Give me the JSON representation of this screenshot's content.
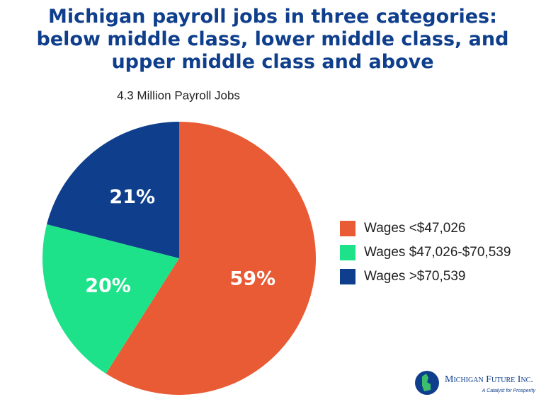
{
  "chart_data": {
    "type": "pie",
    "title": "Michigan payroll jobs in three categories: below middle class, lower middle class, and upper middle class and above",
    "subtitle": "4.3 Million Payroll Jobs",
    "categories": [
      "Wages <$47,026",
      "Wages $47,026-$70,539",
      "Wages >$70,539"
    ],
    "values": [
      59,
      20,
      21
    ],
    "value_labels": [
      "59%",
      "20%",
      "21%"
    ],
    "colors": [
      "#e85b35",
      "#1ee28a",
      "#0f3f8c"
    ],
    "legend": "right"
  },
  "logo": {
    "name": "Michigan Future Inc.",
    "tagline": "A Catalyst for Prosperity"
  }
}
